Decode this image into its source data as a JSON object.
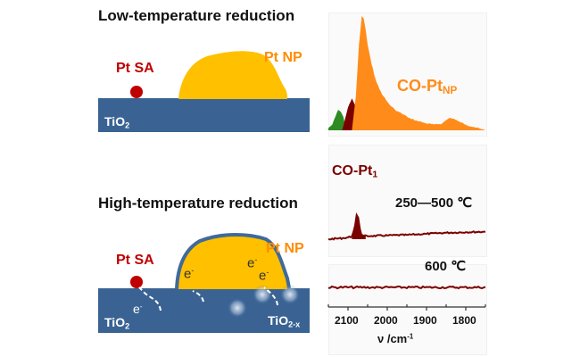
{
  "top_schematic": {
    "title": "Low-temperature reduction",
    "single_atom_label": "Pt SA",
    "nanoparticle_label": "Pt NP",
    "support_label": "TiO",
    "support_sub": "2"
  },
  "bottom_schematic": {
    "title": "High-temperature reduction",
    "single_atom_label": "Pt SA",
    "nanoparticle_label": "Pt NP",
    "support_label": "TiO",
    "support_sub": "2",
    "reduced_support_label": "TiO",
    "reduced_support_sub": "2-x",
    "electron_label": "e",
    "electron_sup": "-"
  },
  "colors": {
    "support": "#3a6394",
    "nanoparticle": "#ffc000",
    "np_overlayer": "#3f6a9a",
    "single_atom": "#c00000",
    "label_red": "#c00000",
    "label_orange": "#ff8c00",
    "spec_orange": "#ff8c1a",
    "spec_darkred": "#7a0000",
    "spec_green": "#2e8b22"
  },
  "chart_data": {
    "type": "area",
    "xlabel": "ν /cm",
    "xlabel_sup": "-1",
    "xlim": [
      2150,
      1750
    ],
    "x_ticks": [
      "2100",
      "2000",
      "1900",
      "1800"
    ],
    "x_tick_values": [
      2100,
      2000,
      1900,
      1800
    ],
    "panels": [
      {
        "name": "low-temperature",
        "series_label": "CO-Pt",
        "series_label_sub": "NP",
        "series": [
          {
            "name": "green shoulder",
            "color": "#2e8b22",
            "x": [
              2150,
              2140,
              2132,
              2125,
              2118,
              2112,
              2105
            ],
            "y": [
              0.02,
              0.05,
              0.12,
              0.18,
              0.16,
              0.12,
              0.0
            ]
          },
          {
            "name": "CO-Pt1",
            "color": "#7a0000",
            "x": [
              2115,
              2100,
              2090,
              2082,
              2075,
              2068
            ],
            "y": [
              0.0,
              0.2,
              0.28,
              0.22,
              0.1,
              0.0
            ]
          },
          {
            "name": "CO-PtNP",
            "color": "#ff8c1a",
            "x": [
              2090,
              2080,
              2072,
              2065,
              2060,
              2055,
              2050,
              2040,
              2030,
              2020,
              2010,
              2000,
              1990,
              1980,
              1970,
              1960,
              1950,
              1940,
              1920,
              1900,
              1880,
              1860,
              1850,
              1840,
              1830,
              1820,
              1800,
              1780,
              1760,
              1750
            ],
            "y": [
              0.0,
              0.3,
              0.75,
              1.0,
              0.98,
              0.88,
              0.75,
              0.58,
              0.45,
              0.36,
              0.3,
              0.25,
              0.21,
              0.18,
              0.16,
              0.14,
              0.12,
              0.1,
              0.08,
              0.06,
              0.05,
              0.06,
              0.09,
              0.11,
              0.1,
              0.08,
              0.05,
              0.03,
              0.01,
              0.0
            ]
          }
        ]
      },
      {
        "name": "high-temperature 250-500",
        "series_label": "CO-Pt",
        "series_label_sub": "1",
        "annotation": "250—500 ℃",
        "series": [
          {
            "name": "CO-Pt1",
            "color": "#7a0000",
            "x": [
              2150,
              2110,
              2090,
              2082,
              2078,
              2074,
              2070,
              2066,
              2060,
              2040,
              2000,
              1950,
              1900,
              1850,
              1800,
              1750
            ],
            "y": [
              0.0,
              0.02,
              0.05,
              0.25,
              0.45,
              0.4,
              0.2,
              0.08,
              0.06,
              0.06,
              0.07,
              0.08,
              0.1,
              0.12,
              0.13,
              0.14
            ]
          }
        ]
      },
      {
        "name": "high-temperature 600",
        "annotation": "600 ℃",
        "series": [
          {
            "name": "flat",
            "color": "#7a0000",
            "x": [
              2150,
              1750
            ],
            "y": [
              0.0,
              0.0
            ]
          }
        ]
      }
    ]
  }
}
